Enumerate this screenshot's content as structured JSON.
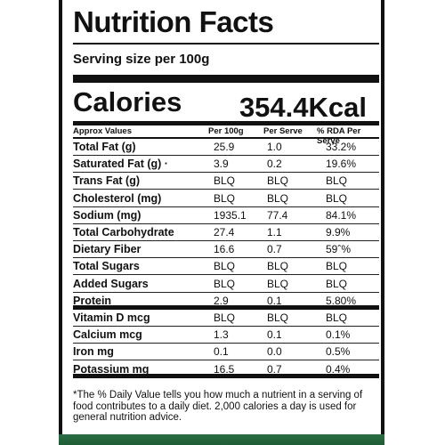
{
  "label": {
    "title": "Nutrition Facts",
    "serving": "Serving size per 100g",
    "calories_label": "Calories",
    "calories_value": "354.4Kcal",
    "columns": [
      "Approx Values",
      "Per 100g",
      "Per Serve",
      "% RDA Per Serve"
    ],
    "rows": [
      {
        "name": "Total Fat (g)",
        "per100": "25.9",
        "perServe": "1.0",
        "rda": "33.2%"
      },
      {
        "name": "Saturated Fat (g) ·",
        "per100": "3.9",
        "perServe": "0.2",
        "rda": "19.6%"
      },
      {
        "name": "Trans Fat (g)",
        "per100": "BLQ",
        "perServe": "BLQ",
        "rda": "BLQ"
      },
      {
        "name": "Cholesterol (mg)",
        "per100": "BLQ",
        "perServe": "BLQ",
        "rda": "BLQ"
      },
      {
        "name": "Sodium (mg)",
        "per100": "1935.1",
        "perServe": "77.4",
        "rda": "84.1%"
      },
      {
        "name": "Total Carbohydrate",
        "per100": "27.4",
        "perServe": "1.1",
        "rda": "9.9%"
      },
      {
        "name": "Dietary Fiber",
        "per100": "16.6",
        "perServe": "0.7",
        "rda": "59ˆ%"
      },
      {
        "name": "Total Sugars",
        "per100": "BLQ",
        "perServe": "BLQ",
        "rda": "BLQ"
      },
      {
        "name": "Added Sugars",
        "per100": "BLQ",
        "perServe": "BLQ",
        "rda": "BLQ"
      },
      {
        "name": "Protein",
        "per100": "2.9",
        "perServe": "0.1",
        "rda": "5.80%"
      },
      {
        "name": "Vitamin D mcg",
        "per100": "BLQ",
        "perServe": "BLQ",
        "rda": "BLQ"
      },
      {
        "name": "Calcium mcg",
        "per100": "1.3",
        "perServe": "0.1",
        "rda": "0.1%"
      },
      {
        "name": "Iron mg",
        "per100": "0.1",
        "perServe": "0.0",
        "rda": "0.5%"
      },
      {
        "name": "Potassium mg",
        "per100": "16.5",
        "perServe": "0.7",
        "rda": "0.4%"
      }
    ],
    "footnote": "*The % Daily Value tells you how much a nutrient in a serving of food contributes to a daily diet. 2,000 calories a day is used for general nutrition advice."
  },
  "colors": {
    "ink": "#111111",
    "packaging_green": "#2b6f44"
  }
}
